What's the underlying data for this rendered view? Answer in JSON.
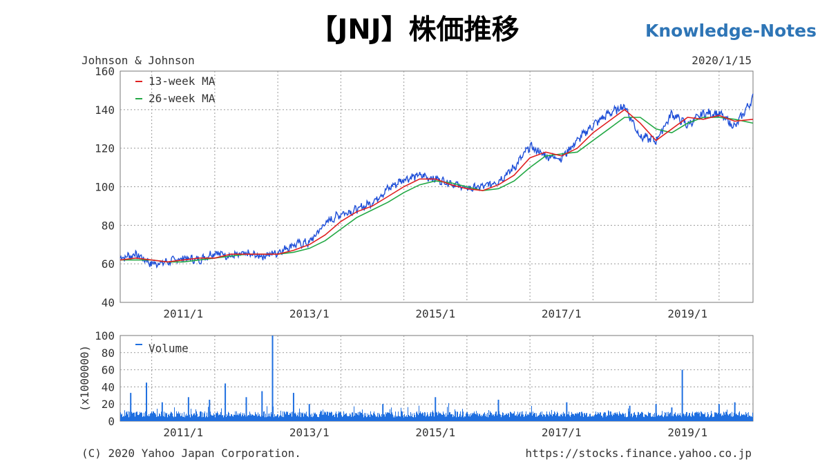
{
  "header": {
    "title": "【JNJ】株価推移",
    "brand": "Knowledge-Notes",
    "company": "Johnson & Johnson",
    "date": "2020/1/15",
    "copyright": "(C) 2020 Yahoo Japan Corporation.",
    "url": "https://stocks.finance.yahoo.co.jp"
  },
  "colors": {
    "price": "#1f4fd8",
    "ma13": "#e02020",
    "ma26": "#22a844",
    "volume": "#1f6fe0",
    "grid": "#999999"
  },
  "chart_data": [
    {
      "type": "line",
      "title": "",
      "grid": true,
      "legend_placement": "top-left",
      "x_tick_labels": [
        "2011/1",
        "2013/1",
        "2015/1",
        "2017/1",
        "2019/1"
      ],
      "x_range": [
        "2010/1",
        "2020/1/15"
      ],
      "ylim": [
        40,
        160
      ],
      "y_ticks": [
        40,
        60,
        80,
        100,
        120,
        140,
        160
      ],
      "series_points": [
        [
          "2010/1",
          63
        ],
        [
          "2010/4",
          65
        ],
        [
          "2010/7",
          60
        ],
        [
          "2010/10",
          61
        ],
        [
          "2011/1",
          63
        ],
        [
          "2011/4",
          62
        ],
        [
          "2011/7",
          66
        ],
        [
          "2011/10",
          64
        ],
        [
          "2012/1",
          65
        ],
        [
          "2012/4",
          64
        ],
        [
          "2012/7",
          66
        ],
        [
          "2012/10",
          70
        ],
        [
          "2013/1",
          71
        ],
        [
          "2013/4",
          81
        ],
        [
          "2013/7",
          86
        ],
        [
          "2013/10",
          88
        ],
        [
          "2014/1",
          92
        ],
        [
          "2014/4",
          99
        ],
        [
          "2014/7",
          104
        ],
        [
          "2014/10",
          106
        ],
        [
          "2015/1",
          104
        ],
        [
          "2015/4",
          102
        ],
        [
          "2015/7",
          99
        ],
        [
          "2015/10",
          100
        ],
        [
          "2016/1",
          103
        ],
        [
          "2016/4",
          110
        ],
        [
          "2016/7",
          121
        ],
        [
          "2016/10",
          116
        ],
        [
          "2017/1",
          115
        ],
        [
          "2017/4",
          124
        ],
        [
          "2017/7",
          132
        ],
        [
          "2017/10",
          138
        ],
        [
          "2018/1",
          142
        ],
        [
          "2018/4",
          126
        ],
        [
          "2018/7",
          124
        ],
        [
          "2018/10",
          138
        ],
        [
          "2019/1",
          132
        ],
        [
          "2019/4",
          138
        ],
        [
          "2019/7",
          138
        ],
        [
          "2019/10",
          131
        ],
        [
          "2020/1/15",
          146
        ]
      ],
      "series": [
        {
          "name": "13-week MA",
          "values": [
            62,
            63,
            62,
            61,
            62,
            63,
            63,
            65,
            65,
            65,
            65,
            67,
            70,
            75,
            82,
            87,
            90,
            95,
            100,
            104,
            104,
            101,
            99,
            98,
            101,
            106,
            115,
            118,
            116,
            120,
            128,
            134,
            140,
            133,
            124,
            130,
            136,
            135,
            137,
            134,
            135
          ]
        },
        {
          "name": "26-week MA",
          "values": [
            62,
            62,
            62,
            61,
            61,
            62,
            63,
            64,
            65,
            65,
            65,
            66,
            68,
            72,
            78,
            84,
            88,
            92,
            97,
            101,
            103,
            102,
            100,
            98,
            99,
            103,
            110,
            116,
            117,
            118,
            124,
            130,
            136,
            136,
            130,
            128,
            133,
            136,
            136,
            135,
            133
          ]
        }
      ]
    },
    {
      "type": "bar",
      "title": "",
      "legend": [
        "Volume"
      ],
      "ylabel": "(x1000000)",
      "ylim": [
        0,
        100
      ],
      "y_ticks": [
        0,
        20,
        40,
        60,
        80,
        100
      ],
      "x_tick_labels": [
        "2011/1",
        "2013/1",
        "2015/1",
        "2017/1",
        "2019/1"
      ],
      "baseline_volume": 8,
      "spikes": [
        [
          "2010/3",
          33
        ],
        [
          "2010/6",
          45
        ],
        [
          "2010/9",
          22
        ],
        [
          "2011/2",
          28
        ],
        [
          "2011/6",
          25
        ],
        [
          "2011/9",
          44
        ],
        [
          "2012/1",
          28
        ],
        [
          "2012/4",
          35
        ],
        [
          "2012/6",
          100
        ],
        [
          "2012/10",
          33
        ],
        [
          "2013/1",
          20
        ],
        [
          "2014/3",
          20
        ],
        [
          "2015/1",
          28
        ],
        [
          "2016/1",
          25
        ],
        [
          "2017/2",
          22
        ],
        [
          "2018/2",
          18
        ],
        [
          "2018/7",
          20
        ],
        [
          "2018/10",
          16
        ],
        [
          "2018/12",
          60
        ],
        [
          "2019/7",
          20
        ],
        [
          "2019/10",
          22
        ]
      ]
    }
  ]
}
